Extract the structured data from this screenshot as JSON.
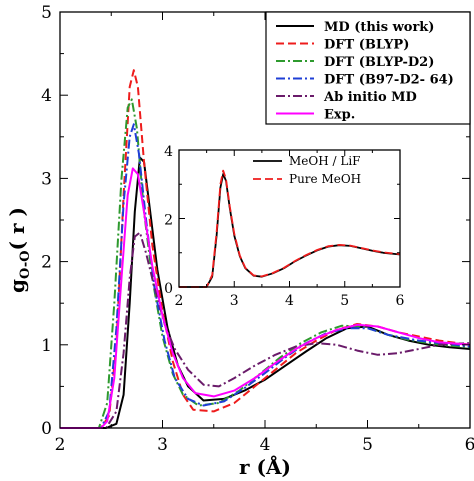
{
  "chart_data": [
    {
      "type": "line",
      "xlabel": "r (Å)",
      "ylabel": "g",
      "ylabel_subscript": "O-O",
      "ylabel_suffix": "( r )",
      "xlim": [
        2,
        6
      ],
      "ylim": [
        0,
        5
      ],
      "x_ticks": [
        2,
        3,
        4,
        5,
        6
      ],
      "y_ticks": [
        0,
        1,
        2,
        3,
        4,
        5
      ],
      "grid": false,
      "legend_position": "top-right",
      "series": [
        {
          "name": "MD (this work)",
          "color": "#000000",
          "dash": "solid",
          "points": [
            [
              2.0,
              0
            ],
            [
              2.45,
              0
            ],
            [
              2.55,
              0.05
            ],
            [
              2.62,
              0.4
            ],
            [
              2.68,
              1.5
            ],
            [
              2.73,
              2.6
            ],
            [
              2.78,
              3.25
            ],
            [
              2.82,
              3.2
            ],
            [
              2.88,
              2.6
            ],
            [
              2.95,
              1.9
            ],
            [
              3.05,
              1.2
            ],
            [
              3.15,
              0.75
            ],
            [
              3.25,
              0.5
            ],
            [
              3.4,
              0.33
            ],
            [
              3.6,
              0.35
            ],
            [
              3.8,
              0.45
            ],
            [
              4.0,
              0.58
            ],
            [
              4.2,
              0.75
            ],
            [
              4.4,
              0.92
            ],
            [
              4.6,
              1.08
            ],
            [
              4.8,
              1.2
            ],
            [
              5.0,
              1.22
            ],
            [
              5.2,
              1.12
            ],
            [
              5.4,
              1.05
            ],
            [
              5.6,
              1.0
            ],
            [
              5.8,
              0.97
            ],
            [
              6.0,
              0.95
            ]
          ]
        },
        {
          "name": "DFT (BLYP)",
          "color": "#ee1c1c",
          "dash": "long",
          "points": [
            [
              2.0,
              0
            ],
            [
              2.4,
              0
            ],
            [
              2.48,
              0.15
            ],
            [
              2.55,
              1.0
            ],
            [
              2.62,
              2.8
            ],
            [
              2.68,
              4.1
            ],
            [
              2.72,
              4.3
            ],
            [
              2.76,
              4.1
            ],
            [
              2.82,
              3.2
            ],
            [
              2.9,
              2.2
            ],
            [
              3.0,
              1.4
            ],
            [
              3.1,
              0.8
            ],
            [
              3.2,
              0.4
            ],
            [
              3.3,
              0.22
            ],
            [
              3.5,
              0.2
            ],
            [
              3.7,
              0.3
            ],
            [
              3.9,
              0.5
            ],
            [
              4.1,
              0.7
            ],
            [
              4.3,
              0.9
            ],
            [
              4.5,
              1.05
            ],
            [
              4.7,
              1.18
            ],
            [
              4.9,
              1.25
            ],
            [
              5.1,
              1.22
            ],
            [
              5.3,
              1.15
            ],
            [
              5.5,
              1.1
            ],
            [
              5.7,
              1.05
            ],
            [
              6.0,
              1.0
            ]
          ]
        },
        {
          "name": "DFT (BLYP-D2)",
          "color": "#2e9a2e",
          "dash": "dashdot",
          "points": [
            [
              2.0,
              0
            ],
            [
              2.38,
              0
            ],
            [
              2.46,
              0.3
            ],
            [
              2.53,
              1.5
            ],
            [
              2.6,
              3.0
            ],
            [
              2.66,
              3.85
            ],
            [
              2.7,
              3.95
            ],
            [
              2.75,
              3.6
            ],
            [
              2.82,
              2.6
            ],
            [
              2.9,
              1.8
            ],
            [
              3.0,
              1.1
            ],
            [
              3.1,
              0.65
            ],
            [
              3.2,
              0.4
            ],
            [
              3.35,
              0.27
            ],
            [
              3.55,
              0.3
            ],
            [
              3.75,
              0.45
            ],
            [
              3.95,
              0.65
            ],
            [
              4.15,
              0.85
            ],
            [
              4.35,
              1.02
            ],
            [
              4.55,
              1.15
            ],
            [
              4.75,
              1.23
            ],
            [
              4.95,
              1.22
            ],
            [
              5.2,
              1.12
            ],
            [
              5.4,
              1.06
            ],
            [
              5.7,
              1.0
            ],
            [
              6.0,
              0.97
            ]
          ]
        },
        {
          "name": "DFT (B97-D2- 64)",
          "color": "#1f3fd6",
          "dash": "dashdot",
          "points": [
            [
              2.0,
              0
            ],
            [
              2.4,
              0
            ],
            [
              2.48,
              0.2
            ],
            [
              2.55,
              1.2
            ],
            [
              2.62,
              2.7
            ],
            [
              2.68,
              3.5
            ],
            [
              2.72,
              3.65
            ],
            [
              2.77,
              3.3
            ],
            [
              2.84,
              2.5
            ],
            [
              2.92,
              1.7
            ],
            [
              3.02,
              1.05
            ],
            [
              3.12,
              0.6
            ],
            [
              3.25,
              0.35
            ],
            [
              3.4,
              0.27
            ],
            [
              3.6,
              0.32
            ],
            [
              3.8,
              0.48
            ],
            [
              4.0,
              0.66
            ],
            [
              4.2,
              0.85
            ],
            [
              4.4,
              1.02
            ],
            [
              4.6,
              1.14
            ],
            [
              4.8,
              1.2
            ],
            [
              5.0,
              1.2
            ],
            [
              5.2,
              1.12
            ],
            [
              5.5,
              1.05
            ],
            [
              6.0,
              0.98
            ]
          ]
        },
        {
          "name": "Ab initio MD",
          "color": "#6a1b6a",
          "dash": "dashdot",
          "points": [
            [
              2.0,
              0
            ],
            [
              2.45,
              0
            ],
            [
              2.55,
              0.2
            ],
            [
              2.62,
              0.9
            ],
            [
              2.68,
              1.8
            ],
            [
              2.73,
              2.3
            ],
            [
              2.78,
              2.35
            ],
            [
              2.84,
              2.1
            ],
            [
              2.92,
              1.7
            ],
            [
              3.02,
              1.25
            ],
            [
              3.12,
              0.95
            ],
            [
              3.25,
              0.7
            ],
            [
              3.4,
              0.52
            ],
            [
              3.55,
              0.5
            ],
            [
              3.7,
              0.6
            ],
            [
              3.9,
              0.75
            ],
            [
              4.1,
              0.88
            ],
            [
              4.3,
              0.98
            ],
            [
              4.5,
              1.02
            ],
            [
              4.7,
              1.0
            ],
            [
              4.9,
              0.93
            ],
            [
              5.1,
              0.88
            ],
            [
              5.3,
              0.9
            ],
            [
              5.5,
              0.95
            ],
            [
              5.7,
              1.0
            ],
            [
              6.0,
              1.02
            ]
          ]
        },
        {
          "name": "Exp.",
          "color": "#ff00ff",
          "dash": "solid",
          "points": [
            [
              2.0,
              0
            ],
            [
              2.4,
              0
            ],
            [
              2.46,
              0.08
            ],
            [
              2.53,
              0.6
            ],
            [
              2.6,
              1.8
            ],
            [
              2.66,
              2.8
            ],
            [
              2.71,
              3.12
            ],
            [
              2.76,
              3.05
            ],
            [
              2.82,
              2.6
            ],
            [
              2.9,
              1.95
            ],
            [
              3.0,
              1.35
            ],
            [
              3.1,
              0.9
            ],
            [
              3.2,
              0.6
            ],
            [
              3.32,
              0.42
            ],
            [
              3.5,
              0.38
            ],
            [
              3.7,
              0.45
            ],
            [
              3.9,
              0.6
            ],
            [
              4.1,
              0.78
            ],
            [
              4.3,
              0.95
            ],
            [
              4.5,
              1.08
            ],
            [
              4.7,
              1.18
            ],
            [
              4.9,
              1.24
            ],
            [
              5.1,
              1.22
            ],
            [
              5.3,
              1.15
            ],
            [
              5.5,
              1.08
            ],
            [
              5.7,
              1.03
            ],
            [
              6.0,
              1.0
            ]
          ]
        }
      ]
    },
    {
      "type": "line",
      "xlabel": "",
      "ylabel": "",
      "xlim": [
        2,
        6
      ],
      "ylim": [
        0,
        4
      ],
      "x_ticks": [
        2,
        3,
        4,
        5,
        6
      ],
      "y_ticks": [
        0,
        2,
        4
      ],
      "grid": false,
      "legend_position": "top-right",
      "series": [
        {
          "name": "MeOH / LiF",
          "color": "#000000",
          "dash": "solid",
          "points": [
            [
              2.0,
              0
            ],
            [
              2.5,
              0
            ],
            [
              2.6,
              0.3
            ],
            [
              2.68,
              1.5
            ],
            [
              2.75,
              2.9
            ],
            [
              2.8,
              3.3
            ],
            [
              2.85,
              3.1
            ],
            [
              2.92,
              2.3
            ],
            [
              3.0,
              1.5
            ],
            [
              3.1,
              0.9
            ],
            [
              3.2,
              0.55
            ],
            [
              3.35,
              0.33
            ],
            [
              3.5,
              0.3
            ],
            [
              3.7,
              0.4
            ],
            [
              3.9,
              0.55
            ],
            [
              4.1,
              0.75
            ],
            [
              4.3,
              0.92
            ],
            [
              4.5,
              1.07
            ],
            [
              4.7,
              1.18
            ],
            [
              4.9,
              1.22
            ],
            [
              5.1,
              1.2
            ],
            [
              5.3,
              1.13
            ],
            [
              5.5,
              1.06
            ],
            [
              5.7,
              1.0
            ],
            [
              6.0,
              0.95
            ]
          ]
        },
        {
          "name": "Pure MeOH",
          "color": "#ee1c1c",
          "dash": "long",
          "points": [
            [
              2.0,
              0
            ],
            [
              2.5,
              0
            ],
            [
              2.6,
              0.35
            ],
            [
              2.68,
              1.6
            ],
            [
              2.75,
              3.0
            ],
            [
              2.8,
              3.4
            ],
            [
              2.85,
              3.15
            ],
            [
              2.92,
              2.35
            ],
            [
              3.0,
              1.55
            ],
            [
              3.1,
              0.92
            ],
            [
              3.2,
              0.56
            ],
            [
              3.35,
              0.34
            ],
            [
              3.5,
              0.31
            ],
            [
              3.7,
              0.41
            ],
            [
              3.9,
              0.56
            ],
            [
              4.1,
              0.76
            ],
            [
              4.3,
              0.93
            ],
            [
              4.5,
              1.08
            ],
            [
              4.7,
              1.19
            ],
            [
              4.9,
              1.23
            ],
            [
              5.1,
              1.21
            ],
            [
              5.3,
              1.14
            ],
            [
              5.5,
              1.07
            ],
            [
              5.7,
              1.01
            ],
            [
              6.0,
              0.96
            ]
          ]
        }
      ]
    }
  ]
}
